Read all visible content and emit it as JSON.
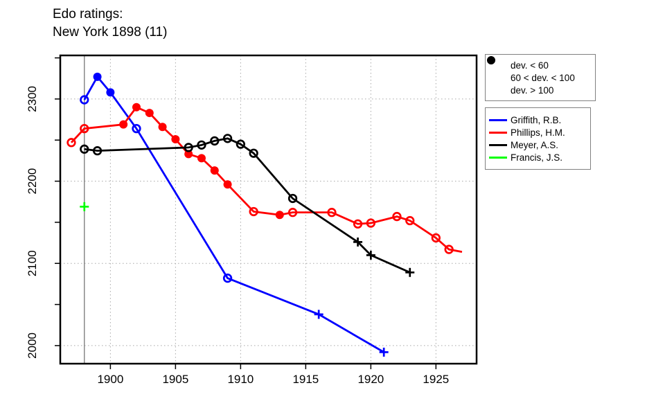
{
  "title": {
    "line1": "Edo ratings:",
    "line2": "New York 1898 (11)"
  },
  "colors": {
    "griffith": "#0000ff",
    "phillips": "#ff0000",
    "meyer": "#000000",
    "francis": "#00ff00",
    "event_line": "#808080",
    "grid": "#a8a8a8",
    "axis": "#000000"
  },
  "symbol_legend": [
    {
      "symbol": "filled-circle",
      "label": "dev. < 60"
    },
    {
      "symbol": "open-circle",
      "label": "60 < dev. < 100"
    },
    {
      "symbol": "plus",
      "label": "dev. > 100"
    }
  ],
  "chart_data": {
    "type": "line",
    "title": "Edo ratings: New York 1898 (11)",
    "xlabel": "",
    "ylabel": "",
    "xlim": [
      1896.15,
      1928.12
    ],
    "ylim": [
      1978,
      2353
    ],
    "xticks": [
      1900,
      1905,
      1910,
      1915,
      1920,
      1925
    ],
    "yticks": [
      2000,
      2100,
      2200,
      2300
    ],
    "yticks_minor": [
      2050,
      2150,
      2250,
      2350
    ],
    "grid": "dotted",
    "legend_position": "right",
    "event_line_year": 1898,
    "marker_meaning": {
      "filled": "dev. < 60",
      "open": "60 < dev. < 100",
      "plus": "dev. > 100"
    },
    "series": [
      {
        "name": "Griffith, R.B.",
        "color": "#0000ff",
        "points": [
          [
            1898,
            2299,
            "open"
          ],
          [
            1899,
            2327,
            "filled"
          ],
          [
            1900,
            2308,
            "filled"
          ],
          [
            1902,
            2264,
            "open"
          ],
          [
            1909,
            2082,
            "open"
          ],
          [
            1916,
            2038,
            "plus"
          ],
          [
            1921,
            1992,
            "plus"
          ]
        ]
      },
      {
        "name": "Phillips, H.M.",
        "color": "#ff0000",
        "points": [
          [
            1897,
            2247,
            "open"
          ],
          [
            1898,
            2264,
            "open"
          ],
          [
            1901,
            2269,
            "filled"
          ],
          [
            1902,
            2290,
            "filled"
          ],
          [
            1903,
            2283,
            "filled"
          ],
          [
            1904,
            2266,
            "filled"
          ],
          [
            1905,
            2251,
            "filled"
          ],
          [
            1906,
            2233,
            "filled"
          ],
          [
            1907,
            2228,
            "filled"
          ],
          [
            1908,
            2213,
            "filled"
          ],
          [
            1909,
            2196,
            "filled"
          ],
          [
            1911,
            2163,
            "open"
          ],
          [
            1913,
            2159,
            "filled"
          ],
          [
            1914,
            2162,
            "open"
          ],
          [
            1917,
            2162,
            "open"
          ],
          [
            1919,
            2148,
            "open"
          ],
          [
            1920,
            2149,
            "open"
          ],
          [
            1922,
            2157,
            "open"
          ],
          [
            1923,
            2152,
            "open"
          ],
          [
            1925,
            2131,
            "open"
          ],
          [
            1926,
            2117,
            "open"
          ],
          [
            1927,
            2114,
            "none"
          ]
        ]
      },
      {
        "name": "Meyer, A.S.",
        "color": "#000000",
        "points": [
          [
            1898,
            2239,
            "open"
          ],
          [
            1899,
            2237,
            "open"
          ],
          [
            1906,
            2241,
            "open"
          ],
          [
            1907,
            2244,
            "open"
          ],
          [
            1908,
            2249,
            "open"
          ],
          [
            1909,
            2252,
            "open"
          ],
          [
            1910,
            2245,
            "open"
          ],
          [
            1911,
            2234,
            "open"
          ],
          [
            1914,
            2179,
            "open"
          ],
          [
            1919,
            2126,
            "plus"
          ],
          [
            1920,
            2110,
            "plus"
          ],
          [
            1923,
            2089,
            "plus"
          ]
        ]
      },
      {
        "name": "Francis, J.S.",
        "color": "#00ff00",
        "points": [
          [
            1898,
            2169,
            "plus"
          ]
        ]
      }
    ]
  }
}
